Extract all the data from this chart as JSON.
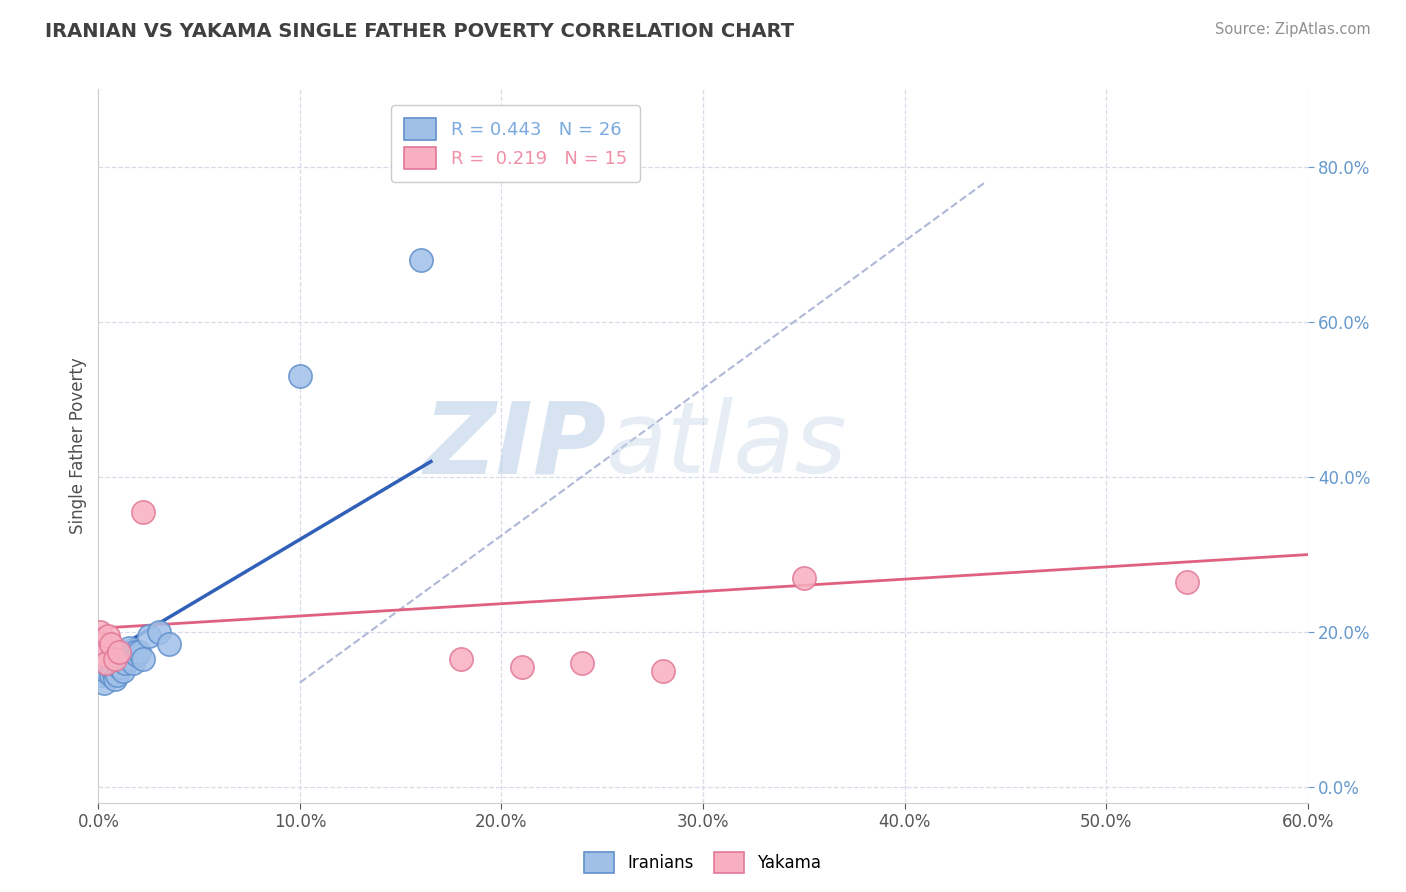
{
  "title": "IRANIAN VS YAKAMA SINGLE FATHER POVERTY CORRELATION CHART",
  "source": "Source: ZipAtlas.com",
  "xlim": [
    0.0,
    0.6
  ],
  "ylim": [
    -0.02,
    0.9
  ],
  "ylabel": "Single Father Poverty",
  "legend_items": [
    {
      "label": "R = 0.443   N = 26",
      "color": "#7aabe0"
    },
    {
      "label": "R =  0.219   N = 15",
      "color": "#f090a8"
    }
  ],
  "iranians_x": [
    0.001,
    0.002,
    0.003,
    0.004,
    0.005,
    0.006,
    0.007,
    0.008,
    0.009,
    0.01,
    0.011,
    0.012,
    0.013,
    0.014,
    0.015,
    0.016,
    0.017,
    0.018,
    0.019,
    0.02,
    0.022,
    0.025,
    0.03,
    0.035,
    0.1,
    0.16
  ],
  "iranians_y": [
    0.155,
    0.145,
    0.135,
    0.15,
    0.16,
    0.145,
    0.15,
    0.14,
    0.145,
    0.155,
    0.155,
    0.15,
    0.16,
    0.175,
    0.18,
    0.165,
    0.16,
    0.175,
    0.17,
    0.175,
    0.165,
    0.195,
    0.2,
    0.185,
    0.53,
    0.68
  ],
  "yakama_x": [
    0.001,
    0.002,
    0.003,
    0.004,
    0.005,
    0.006,
    0.008,
    0.01,
    0.022,
    0.18,
    0.21,
    0.24,
    0.28,
    0.35,
    0.54
  ],
  "yakama_y": [
    0.2,
    0.185,
    0.17,
    0.16,
    0.195,
    0.185,
    0.165,
    0.175,
    0.355,
    0.165,
    0.155,
    0.16,
    0.15,
    0.27,
    0.265
  ],
  "iranian_line_x": [
    0.0,
    0.165
  ],
  "iranian_line_y": [
    0.165,
    0.42
  ],
  "yakama_line_x": [
    0.0,
    0.6
  ],
  "yakama_line_y": [
    0.205,
    0.3
  ],
  "dash_line_x": [
    0.1,
    0.44
  ],
  "dash_line_y": [
    0.135,
    0.78
  ],
  "iranian_line_color": "#3060b8",
  "yakama_line_color": "#e06080",
  "dashed_line_color": "#b0b8d8",
  "dot_color_iranian": "#a0c0e8",
  "dot_color_yakama": "#f8b0c0",
  "dot_edge_iranian": "#6090cc",
  "dot_edge_yakama": "#e07898",
  "watermark_zip": "ZIP",
  "watermark_atlas": "atlas",
  "watermark_color_zip": "#b8cce8",
  "watermark_color_atlas": "#c8d8e8",
  "background_color": "#ffffff",
  "grid_color": "#d8dce8",
  "title_color": "#404040",
  "source_color": "#909090",
  "ylabel_color": "#505050",
  "right_tick_color": "#6699cc",
  "bottom_label_iranians": "Iranians",
  "bottom_label_yakama": "Yakama"
}
